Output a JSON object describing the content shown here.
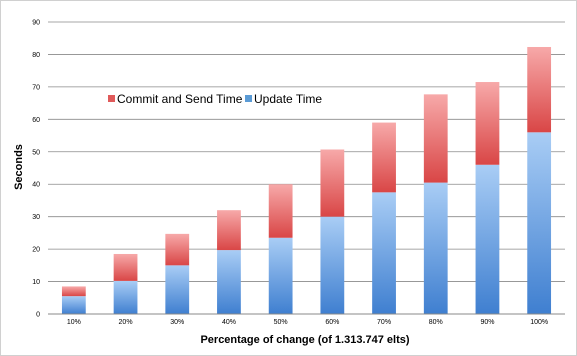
{
  "chart_data": {
    "type": "bar",
    "stacked": true,
    "title": "",
    "xlabel": "Percentage of change (of 1.313.747 elts)",
    "ylabel": "Seconds",
    "ylim": [
      0,
      90
    ],
    "yticks": [
      "0",
      "10",
      "20",
      "30",
      "40",
      "50",
      "60",
      "70",
      "80",
      "90"
    ],
    "categories": [
      "10%",
      "20%",
      "30%",
      "40%",
      "50%",
      "60%",
      "70%",
      "80%",
      "90%",
      "100%"
    ],
    "series": [
      {
        "name": "Update Time",
        "values": [
          5.5,
          10.2,
          15.0,
          19.7,
          23.5,
          30.0,
          37.5,
          40.5,
          46.0,
          56.0
        ],
        "color": "#5b9bd5"
      },
      {
        "name": "Commit and Send Time",
        "values": [
          3.0,
          8.3,
          9.7,
          12.3,
          16.5,
          20.7,
          21.5,
          27.2,
          25.5,
          26.3
        ],
        "color": "#e05a5a"
      }
    ],
    "grid": true,
    "legend_position": "top-left",
    "legend_order": [
      "Commit and Send Time",
      "Update Time"
    ]
  }
}
